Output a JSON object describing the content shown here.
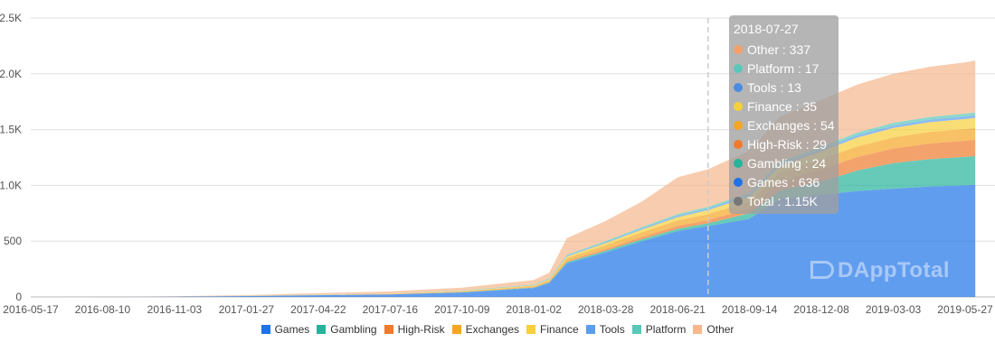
{
  "chart_data": {
    "type": "area",
    "stacked": true,
    "y_ticks": [
      "0",
      "500",
      "1.0K",
      "1.5K",
      "2.0K",
      "2.5K"
    ],
    "ylim": [
      0,
      2500
    ],
    "x_ticks": [
      "2016-05-17",
      "2016-08-10",
      "2016-11-03",
      "2017-01-27",
      "2017-04-22",
      "2017-07-16",
      "2017-10-09",
      "2018-01-02",
      "2018-03-28",
      "2018-06-21",
      "2018-09-14",
      "2018-12-08",
      "2019-03-03",
      "2019-05-27"
    ],
    "x": [
      "2016-05-17",
      "2016-08-10",
      "2016-11-03",
      "2017-01-27",
      "2017-04-22",
      "2017-07-16",
      "2017-10-09",
      "2018-01-02",
      "2018-01-20",
      "2018-02-10",
      "2018-03-28",
      "2018-05-10",
      "2018-06-21",
      "2018-07-27",
      "2018-09-14",
      "2018-10-20",
      "2018-12-08",
      "2019-01-20",
      "2019-03-03",
      "2019-04-15",
      "2019-05-27",
      "2019-06-08"
    ],
    "series": [
      {
        "name": "Games",
        "color": "#1e73e8",
        "values": [
          0,
          1,
          3,
          8,
          15,
          22,
          40,
          80,
          125,
          300,
          400,
          500,
          590,
          636,
          700,
          880,
          915,
          950,
          970,
          990,
          1000,
          1005
        ]
      },
      {
        "name": "Gambling",
        "color": "#26b39b",
        "values": [
          0,
          0,
          0,
          0,
          1,
          1,
          2,
          4,
          5,
          12,
          15,
          18,
          21,
          24,
          50,
          75,
          120,
          185,
          230,
          245,
          255,
          258
        ]
      },
      {
        "name": "High-Risk",
        "color": "#f07a2d",
        "values": [
          0,
          0,
          0,
          0,
          1,
          1,
          2,
          4,
          6,
          10,
          14,
          20,
          26,
          29,
          40,
          80,
          110,
          120,
          130,
          140,
          145,
          147
        ]
      },
      {
        "name": "Exchanges",
        "color": "#f5a623",
        "values": [
          0,
          0,
          0,
          1,
          2,
          3,
          6,
          10,
          14,
          25,
          35,
          42,
          48,
          54,
          65,
          80,
          90,
          95,
          100,
          103,
          105,
          106
        ]
      },
      {
        "name": "Finance",
        "color": "#f7d03b",
        "values": [
          0,
          0,
          0,
          1,
          1,
          2,
          4,
          6,
          8,
          15,
          20,
          25,
          30,
          35,
          45,
          60,
          70,
          80,
          85,
          88,
          90,
          90
        ]
      },
      {
        "name": "Tools",
        "color": "#5b9ded",
        "values": [
          0,
          0,
          0,
          0,
          1,
          1,
          2,
          4,
          5,
          7,
          8,
          10,
          12,
          13,
          15,
          17,
          18,
          20,
          21,
          22,
          23,
          23
        ]
      },
      {
        "name": "Platform",
        "color": "#5ac8b8",
        "values": [
          0,
          0,
          0,
          0,
          1,
          1,
          2,
          3,
          4,
          8,
          10,
          12,
          15,
          17,
          18,
          22,
          25,
          25,
          25,
          25,
          25,
          25
        ]
      },
      {
        "name": "Other",
        "color": "#f5b78c",
        "values": [
          0,
          1,
          3,
          6,
          12,
          18,
          25,
          40,
          50,
          150,
          180,
          230,
          330,
          337,
          380,
          400,
          420,
          430,
          440,
          450,
          460,
          466
        ]
      }
    ]
  },
  "legend": [
    {
      "name": "Games",
      "color": "#1e73e8"
    },
    {
      "name": "Gambling",
      "color": "#26b39b"
    },
    {
      "name": "High-Risk",
      "color": "#f07a2d"
    },
    {
      "name": "Exchanges",
      "color": "#f5a623"
    },
    {
      "name": "Finance",
      "color": "#f7d03b"
    },
    {
      "name": "Tools",
      "color": "#5b9ded"
    },
    {
      "name": "Platform",
      "color": "#5ac8b8"
    },
    {
      "name": "Other",
      "color": "#f5b78c"
    }
  ],
  "tooltip": {
    "date": "2018-07-27",
    "rows": [
      {
        "label": "Other : 337",
        "color": "#f5a06a"
      },
      {
        "label": "Platform : 17",
        "color": "#5ac8b8"
      },
      {
        "label": "Tools : 13",
        "color": "#4a8de0"
      },
      {
        "label": "Finance : 35",
        "color": "#f7d03b"
      },
      {
        "label": "Exchanges : 54",
        "color": "#f5a623"
      },
      {
        "label": "High-Risk : 29",
        "color": "#f07a2d"
      },
      {
        "label": "Gambling : 24",
        "color": "#26b39b"
      },
      {
        "label": "Games : 636",
        "color": "#1e73e8"
      },
      {
        "label": "Total : 1.15K",
        "color": "#777777"
      }
    ]
  },
  "watermark": "DAppTotal"
}
